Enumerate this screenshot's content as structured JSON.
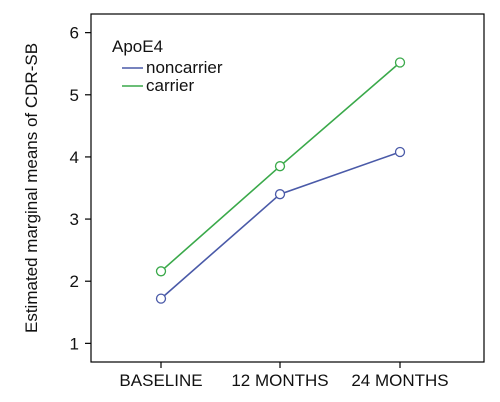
{
  "chart_data": {
    "type": "line",
    "title": "",
    "xlabel": "",
    "ylabel": "Estimated marginal means of CDR-SB",
    "categories": [
      "BASELINE",
      "12 MONTHS",
      "24 MONTHS"
    ],
    "ylim": [
      0.7,
      6.3
    ],
    "yticks": [
      1,
      2,
      3,
      4,
      5,
      6
    ],
    "grid": false,
    "legend": {
      "title": "ApoE4",
      "placement": "top-left"
    },
    "series": [
      {
        "name": "noncarrier",
        "color": "#4a5aa8",
        "values": [
          1.72,
          3.4,
          4.08
        ]
      },
      {
        "name": "carrier",
        "color": "#3aa94a",
        "values": [
          2.16,
          3.85,
          5.52
        ]
      }
    ]
  }
}
